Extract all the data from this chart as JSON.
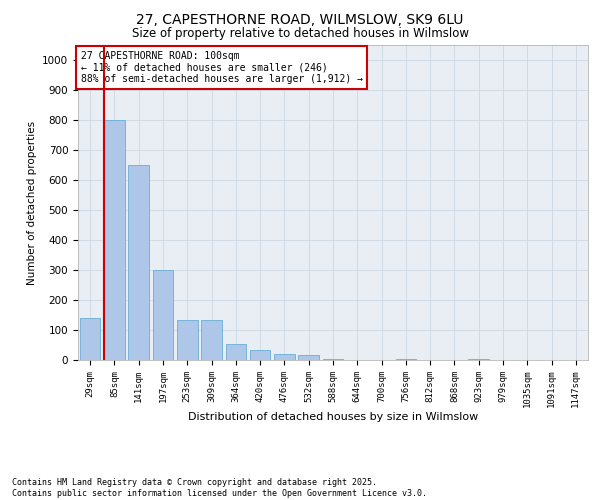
{
  "title_line1": "27, CAPESTHORNE ROAD, WILMSLOW, SK9 6LU",
  "title_line2": "Size of property relative to detached houses in Wilmslow",
  "xlabel": "Distribution of detached houses by size in Wilmslow",
  "ylabel": "Number of detached properties",
  "bins": [
    "29sqm",
    "85sqm",
    "141sqm",
    "197sqm",
    "253sqm",
    "309sqm",
    "364sqm",
    "420sqm",
    "476sqm",
    "532sqm",
    "588sqm",
    "644sqm",
    "700sqm",
    "756sqm",
    "812sqm",
    "868sqm",
    "923sqm",
    "979sqm",
    "1035sqm",
    "1091sqm",
    "1147sqm"
  ],
  "values": [
    140,
    800,
    650,
    300,
    135,
    135,
    55,
    35,
    20,
    18,
    5,
    0,
    0,
    5,
    0,
    0,
    5,
    0,
    0,
    0,
    0
  ],
  "bar_color": "#aec6e8",
  "bar_edge_color": "#6aaed6",
  "vline_x_idx": 1,
  "vline_color": "#cc0000",
  "annotation_text": "27 CAPESTHORNE ROAD: 100sqm\n← 11% of detached houses are smaller (246)\n88% of semi-detached houses are larger (1,912) →",
  "annotation_box_color": "white",
  "annotation_box_edge": "#cc0000",
  "ylim": [
    0,
    1050
  ],
  "yticks": [
    0,
    100,
    200,
    300,
    400,
    500,
    600,
    700,
    800,
    900,
    1000
  ],
  "grid_color": "#c8d4e0",
  "bg_color": "#e8eef4",
  "footer_line1": "Contains HM Land Registry data © Crown copyright and database right 2025.",
  "footer_line2": "Contains public sector information licensed under the Open Government Licence v3.0."
}
